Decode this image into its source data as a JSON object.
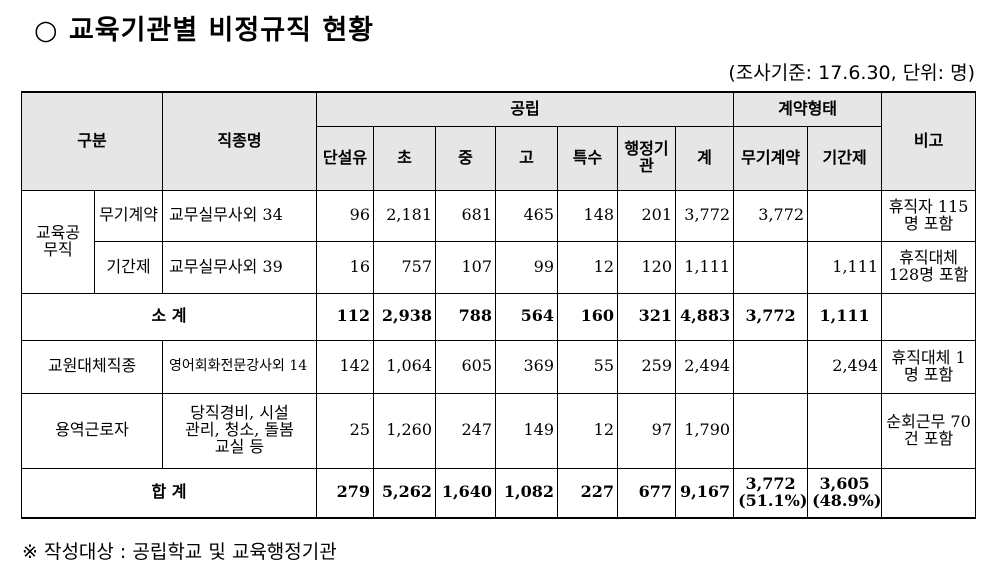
{
  "title": "○ 교육기관별 비정규직 현황",
  "subtitle": "(조사기준: 17.6.30, 단위: 명)",
  "header": {
    "gubun": "구분",
    "jobname": "직종명",
    "public": "공립",
    "contract": "계약형태",
    "note": "비고",
    "cols": [
      "단설유",
      "초",
      "중",
      "고",
      "특수",
      "행정기관",
      "계"
    ],
    "contract_cols": [
      "무기계약",
      "기간제"
    ]
  },
  "rows": {
    "edu_group": "교육공무직",
    "r1": {
      "sub": "무기계약",
      "job": "교무실무사외 34",
      "vals": [
        "96",
        "2,181",
        "681",
        "465",
        "148",
        "201",
        "3,772"
      ],
      "c1": "3,772",
      "c2": "",
      "note": "휴직자 115명 포함"
    },
    "r2": {
      "sub": "기간제",
      "job": "교무실무사외 39",
      "vals": [
        "16",
        "757",
        "107",
        "99",
        "12",
        "120",
        "1,111"
      ],
      "c1": "",
      "c2": "1,111",
      "note": "휴직대체 128명 포함"
    },
    "subtotal": {
      "label": "소 계",
      "vals": [
        "112",
        "2,938",
        "788",
        "564",
        "160",
        "321",
        "4,883"
      ],
      "c1": "3,772",
      "c2": "1,111",
      "note": ""
    },
    "r3": {
      "label": "교원대체직종",
      "job": "영어회화전문강사외 14",
      "vals": [
        "142",
        "1,064",
        "605",
        "369",
        "55",
        "259",
        "2,494"
      ],
      "c1": "",
      "c2": "2,494",
      "note": "휴직대체 1명 포함"
    },
    "r4": {
      "label": "용역근로자",
      "job": "당직경비, 시설관리, 청소, 돌봄교실 등",
      "vals": [
        "25",
        "1,260",
        "247",
        "149",
        "12",
        "97",
        "1,790"
      ],
      "c1": "",
      "c2": "",
      "note": "순회근무 70건 포함"
    },
    "total": {
      "label": "합 계",
      "vals": [
        "279",
        "5,262",
        "1,640",
        "1,082",
        "227",
        "677",
        "9,167"
      ],
      "c1": "3,772",
      "c1b": "(51.1%)",
      "c2": "3,605",
      "c2b": "(48.9%)",
      "note": ""
    }
  },
  "footnote": "※ 작성대상 : 공립학교 및 교육행정기관"
}
